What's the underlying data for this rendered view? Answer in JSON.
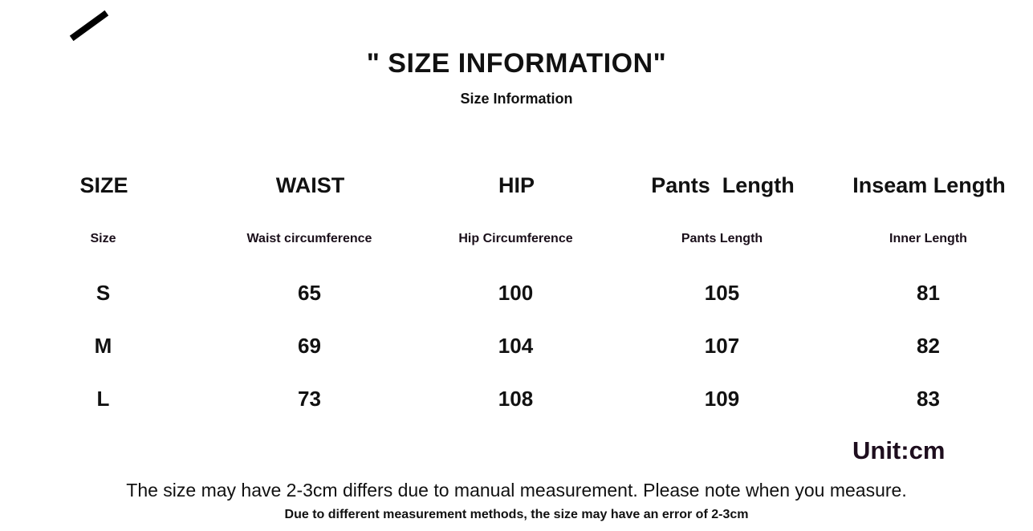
{
  "title": "\" SIZE INFORMATION\"",
  "subtitle": "Size Information",
  "table": {
    "headers": [
      "SIZE",
      "WAIST",
      "HIP",
      "Pants  Length",
      "Inseam Length"
    ],
    "subheaders": [
      "Size",
      "Waist circumference",
      "Hip Circumference",
      "Pants Length",
      "Inner Length"
    ],
    "rows": [
      [
        "S",
        "65",
        "100",
        "105",
        "81"
      ],
      [
        "M",
        "69",
        "104",
        "107",
        "82"
      ],
      [
        "L",
        "73",
        "108",
        "109",
        "83"
      ]
    ]
  },
  "unit": "Unit:cm",
  "note_primary": "The size may have 2-3cm differs due to manual measurement. Please note when you measure.",
  "note_secondary": "Due to different measurement methods, the size may have an error of 2-3cm"
}
